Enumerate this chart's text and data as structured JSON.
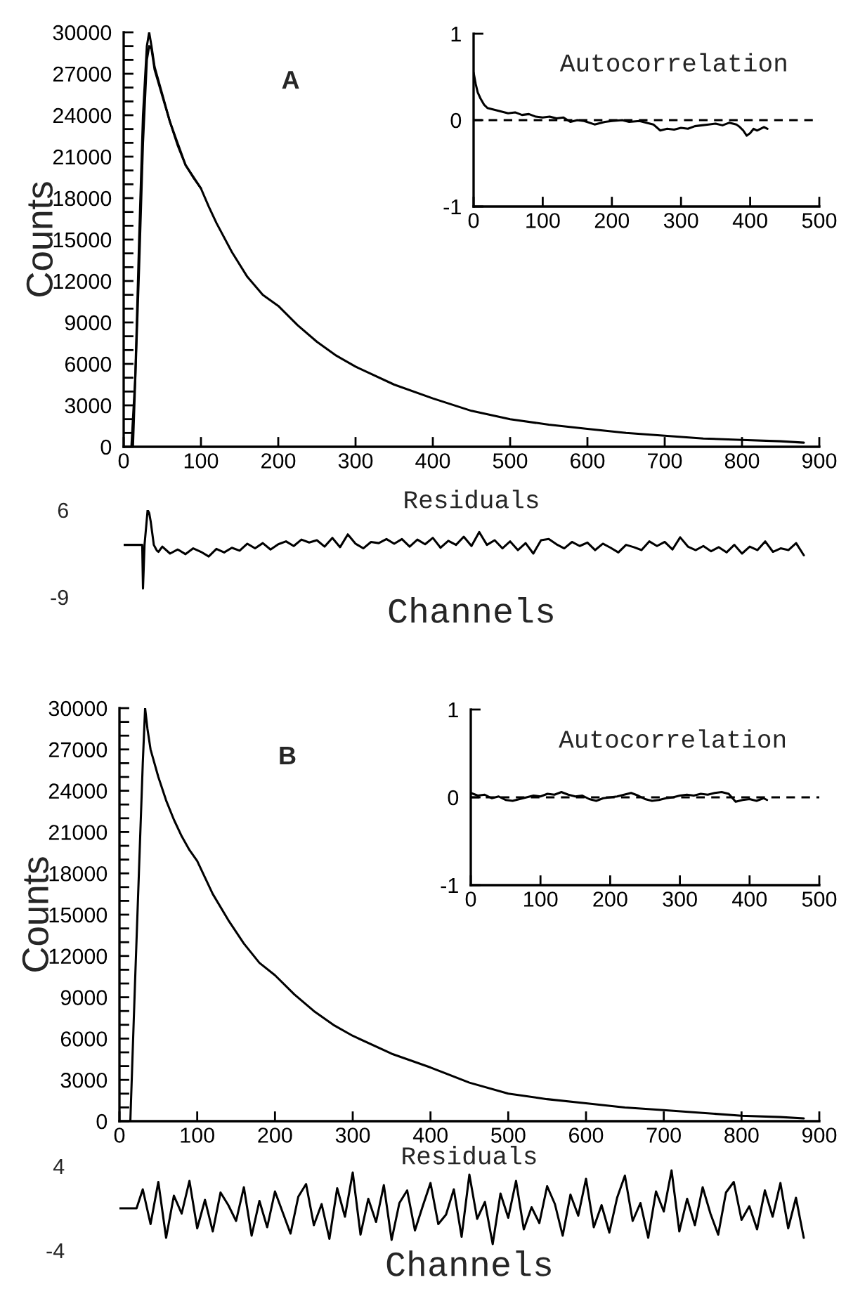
{
  "chart_data": [
    {
      "type": "line",
      "ylabel": "Counts",
      "annotations": [
        "A"
      ],
      "xlim": [
        0,
        900
      ],
      "ylim": [
        0,
        30000
      ],
      "xticks": [
        0,
        100,
        200,
        300,
        400,
        500,
        600,
        700,
        800,
        900
      ],
      "yticks": [
        0,
        {
          "value": 1000,
          "label": null
        },
        {
          "value": 2000,
          "label": null
        },
        3000,
        {
          "value": 4000,
          "label": null
        },
        {
          "value": 5000,
          "label": null
        },
        6000,
        {
          "value": 7000,
          "label": null
        },
        {
          "value": 8000,
          "label": null
        },
        9000,
        {
          "value": 10000,
          "label": null
        },
        {
          "value": 11000,
          "label": null
        },
        12000,
        {
          "value": 13000,
          "label": null
        },
        {
          "value": 14000,
          "label": null
        },
        15000,
        {
          "value": 16000,
          "label": null
        },
        {
          "value": 17000,
          "label": null
        },
        18000,
        {
          "value": 19000,
          "label": null
        },
        {
          "value": 20000,
          "label": null
        },
        21000,
        {
          "value": 22000,
          "label": null
        },
        {
          "value": 23000,
          "label": null
        },
        24000,
        {
          "value": 25000,
          "label": null
        },
        {
          "value": 26000,
          "label": null
        },
        27000,
        {
          "value": 28000,
          "label": null
        },
        {
          "value": 29000,
          "label": null
        },
        30000
      ],
      "series": [
        {
          "color": "#000000",
          "x": [
            10,
            15,
            20,
            25,
            30,
            33,
            36,
            40,
            50,
            60,
            70,
            80,
            90,
            100,
            110,
            120,
            140,
            160,
            180,
            200,
            225,
            250,
            275,
            300,
            350,
            400,
            450,
            500,
            550,
            600,
            650,
            700,
            750,
            800,
            850,
            880
          ],
          "values": [
            0,
            5000,
            15000,
            24000,
            29000,
            30000,
            29000,
            27500,
            25500,
            23500,
            21800,
            20400,
            19500,
            18700,
            17400,
            16200,
            14100,
            12300,
            11000,
            10200,
            8800,
            7600,
            6600,
            5800,
            4500,
            3500,
            2600,
            2000,
            1600,
            1300,
            1000,
            800,
            600,
            500,
            400,
            300
          ]
        },
        {
          "color": "#000000",
          "x": [
            12,
            20,
            25,
            30,
            33,
            36,
            40,
            50,
            60,
            80,
            100
          ],
          "values": [
            0,
            13000,
            22000,
            28000,
            29000,
            28800,
            27300,
            25400,
            23500,
            20400,
            18700
          ]
        }
      ]
    },
    {
      "type": "line",
      "title": "Autocorrelation",
      "xlim": [
        0,
        500
      ],
      "ylim": [
        -1,
        1
      ],
      "xticks": [
        0,
        100,
        200,
        300,
        400,
        500
      ],
      "yticks": [
        -1,
        0,
        1
      ],
      "ref_lines": [
        {
          "axis": "y",
          "value": 0,
          "color": "#000000",
          "line_style": "dashed"
        }
      ],
      "series": [
        {
          "color": "#000000",
          "x": [
            0,
            3,
            6,
            10,
            15,
            20,
            30,
            40,
            50,
            60,
            70,
            80,
            90,
            100,
            110,
            120,
            130,
            140,
            150,
            160,
            175,
            190,
            200,
            215,
            225,
            240,
            250,
            260,
            270,
            280,
            290,
            300,
            310,
            320,
            330,
            340,
            350,
            360,
            370,
            380,
            385,
            390,
            395,
            400,
            405,
            410,
            420,
            425
          ],
          "values": [
            0.55,
            0.42,
            0.32,
            0.25,
            0.18,
            0.14,
            0.12,
            0.1,
            0.08,
            0.09,
            0.06,
            0.07,
            0.04,
            0.03,
            0.04,
            0.02,
            0.03,
            -0.02,
            0.0,
            -0.01,
            -0.05,
            -0.02,
            -0.01,
            0.0,
            -0.02,
            -0.01,
            -0.03,
            -0.05,
            -0.12,
            -0.1,
            -0.11,
            -0.09,
            -0.1,
            -0.07,
            -0.06,
            -0.05,
            -0.04,
            -0.06,
            -0.03,
            -0.05,
            -0.08,
            -0.12,
            -0.18,
            -0.15,
            -0.1,
            -0.12,
            -0.08,
            -0.1
          ]
        }
      ]
    },
    {
      "type": "line",
      "title": "Residuals",
      "xlabel": "Channels",
      "xlim": [
        0,
        900
      ],
      "ylim": [
        -9,
        6
      ],
      "yticks": [
        6,
        -9
      ],
      "tick_labels": "y",
      "series": [
        {
          "color": "#000000",
          "x": [
            0,
            24,
            25,
            27,
            29,
            31,
            33,
            35,
            37,
            39,
            41,
            43,
            45,
            50,
            60,
            70,
            80,
            90,
            100,
            110,
            120,
            130,
            140,
            150,
            160,
            170,
            180,
            190,
            200,
            210,
            220,
            230,
            240,
            250,
            260,
            270,
            280,
            290,
            300,
            310,
            320,
            330,
            340,
            350,
            360,
            370,
            380,
            390,
            400,
            410,
            420,
            430,
            440,
            450,
            460,
            470,
            480,
            490,
            500,
            510,
            520,
            530,
            540,
            550,
            560,
            570,
            580,
            590,
            600,
            610,
            620,
            630,
            640,
            650,
            660,
            670,
            680,
            690,
            700,
            710,
            720,
            730,
            740,
            750,
            760,
            770,
            780,
            790,
            800,
            810,
            820,
            830,
            840,
            850,
            860,
            870,
            880
          ],
          "values": [
            0,
            0,
            -7.5,
            0,
            3,
            6,
            5.5,
            4,
            2,
            0,
            -0.5,
            -1,
            -1.2,
            -0.3,
            -1.5,
            -0.8,
            -1.6,
            -0.6,
            -1.2,
            -2.0,
            -0.7,
            -1.3,
            -0.5,
            -1.0,
            0.2,
            -0.6,
            0.3,
            -0.8,
            0.1,
            0.6,
            -0.2,
            0.9,
            0.4,
            0.8,
            -0.3,
            1.2,
            -0.4,
            1.8,
            0.2,
            -0.6,
            0.5,
            0.3,
            1.0,
            0.2,
            1.0,
            -0.3,
            0.9,
            0.1,
            1.2,
            -0.5,
            0.7,
            0.0,
            1.4,
            -0.2,
            2.2,
            0.0,
            0.8,
            -0.6,
            0.6,
            -0.9,
            0.3,
            -1.5,
            0.8,
            1.0,
            0.1,
            -0.6,
            0.5,
            -0.2,
            0.4,
            -0.9,
            0.2,
            -0.5,
            -1.3,
            0.0,
            -0.4,
            -0.9,
            0.6,
            -0.2,
            0.5,
            -0.8,
            1.3,
            -0.3,
            -0.9,
            -0.2,
            -1.1,
            -0.4,
            -1.3,
            0.0,
            -1.5,
            -0.3,
            -0.9,
            0.6,
            -1.2,
            -0.6,
            -0.9,
            0.3,
            -1.8
          ]
        }
      ]
    },
    {
      "type": "line",
      "ylabel": "Counts",
      "annotations": [
        "B"
      ],
      "xlim": [
        0,
        900
      ],
      "ylim": [
        0,
        30000
      ],
      "xticks": [
        0,
        100,
        200,
        300,
        400,
        500,
        600,
        700,
        800,
        900
      ],
      "yticks": [
        0,
        {
          "value": 1000,
          "label": null
        },
        {
          "value": 2000,
          "label": null
        },
        3000,
        {
          "value": 4000,
          "label": null
        },
        {
          "value": 5000,
          "label": null
        },
        6000,
        {
          "value": 7000,
          "label": null
        },
        {
          "value": 8000,
          "label": null
        },
        9000,
        {
          "value": 10000,
          "label": null
        },
        {
          "value": 11000,
          "label": null
        },
        12000,
        {
          "value": 13000,
          "label": null
        },
        {
          "value": 14000,
          "label": null
        },
        15000,
        {
          "value": 16000,
          "label": null
        },
        {
          "value": 17000,
          "label": null
        },
        18000,
        {
          "value": 19000,
          "label": null
        },
        {
          "value": 20000,
          "label": null
        },
        21000,
        {
          "value": 22000,
          "label": null
        },
        {
          "value": 23000,
          "label": null
        },
        24000,
        {
          "value": 25000,
          "label": null
        },
        {
          "value": 26000,
          "label": null
        },
        27000,
        {
          "value": 28000,
          "label": null
        },
        {
          "value": 29000,
          "label": null
        },
        30000
      ],
      "series": [
        {
          "color": "#000000",
          "x": [
            14,
            20,
            25,
            30,
            33,
            36,
            40,
            50,
            60,
            70,
            80,
            90,
            100,
            120,
            140,
            160,
            180,
            200,
            225,
            250,
            275,
            300,
            350,
            400,
            450,
            500,
            550,
            600,
            650,
            700,
            750,
            800,
            850,
            880
          ],
          "values": [
            0,
            10000,
            18000,
            26000,
            30000,
            28500,
            27000,
            25000,
            23300,
            21900,
            20700,
            19700,
            18900,
            16500,
            14600,
            12900,
            11500,
            10600,
            9200,
            8000,
            7000,
            6200,
            4900,
            3900,
            2800,
            2000,
            1600,
            1300,
            1000,
            800,
            600,
            400,
            300,
            200
          ]
        }
      ]
    },
    {
      "type": "line",
      "title": "Autocorrelation",
      "xlim": [
        0,
        500
      ],
      "ylim": [
        -1,
        1
      ],
      "xticks": [
        0,
        100,
        200,
        300,
        400,
        500
      ],
      "yticks": [
        -1,
        0,
        1
      ],
      "ref_lines": [
        {
          "axis": "y",
          "value": 0,
          "color": "#000000",
          "line_style": "dashed"
        }
      ],
      "series": [
        {
          "color": "#000000",
          "x": [
            0,
            10,
            20,
            30,
            40,
            50,
            60,
            70,
            80,
            90,
            100,
            110,
            120,
            130,
            140,
            150,
            160,
            170,
            180,
            190,
            200,
            210,
            220,
            230,
            240,
            250,
            260,
            270,
            280,
            290,
            300,
            310,
            320,
            330,
            340,
            350,
            360,
            370,
            380,
            390,
            400,
            410,
            420,
            425
          ],
          "values": [
            0.05,
            0.02,
            0.03,
            -0.01,
            0.01,
            -0.03,
            -0.04,
            -0.02,
            0.0,
            0.02,
            0.01,
            0.04,
            0.03,
            0.06,
            0.03,
            0.01,
            0.02,
            -0.02,
            -0.04,
            -0.01,
            0.0,
            0.01,
            0.03,
            0.05,
            0.02,
            -0.02,
            -0.04,
            -0.03,
            -0.01,
            0.0,
            0.02,
            0.03,
            0.02,
            0.04,
            0.03,
            0.05,
            0.06,
            0.04,
            -0.05,
            -0.03,
            -0.02,
            -0.04,
            -0.01,
            -0.03
          ]
        }
      ]
    },
    {
      "type": "line",
      "title": "Residuals",
      "xlabel": "Channels",
      "xlim": [
        0,
        900
      ],
      "ylim": [
        -4,
        4
      ],
      "yticks": [
        4,
        -4
      ],
      "tick_labels": "y",
      "series": [
        {
          "color": "#000000",
          "x": [
            0,
            22,
            30,
            40,
            50,
            60,
            70,
            80,
            90,
            100,
            110,
            120,
            130,
            140,
            150,
            160,
            170,
            180,
            190,
            200,
            210,
            220,
            230,
            240,
            250,
            260,
            270,
            280,
            290,
            300,
            310,
            320,
            330,
            340,
            350,
            360,
            370,
            380,
            390,
            400,
            410,
            420,
            430,
            440,
            450,
            460,
            470,
            480,
            490,
            500,
            510,
            520,
            530,
            540,
            550,
            560,
            570,
            580,
            590,
            600,
            610,
            620,
            630,
            640,
            650,
            660,
            670,
            680,
            690,
            700,
            710,
            720,
            730,
            740,
            750,
            760,
            770,
            780,
            790,
            800,
            810,
            820,
            830,
            840,
            850,
            860,
            870,
            880
          ],
          "values": [
            0,
            0,
            1.8,
            -1.5,
            2.5,
            -2.8,
            1.2,
            -0.5,
            2.6,
            -1.9,
            0.8,
            -2.2,
            1.5,
            0.3,
            -1.2,
            2.0,
            -2.6,
            0.7,
            -1.8,
            1.6,
            -0.4,
            -2.4,
            1.1,
            2.3,
            -1.6,
            0.4,
            -2.9,
            1.9,
            -0.8,
            3.4,
            -2.5,
            0.9,
            -1.3,
            2.2,
            -3.0,
            0.5,
            1.7,
            -2.1,
            0.2,
            2.4,
            -1.5,
            -0.6,
            1.8,
            -2.7,
            3.2,
            -1.0,
            0.6,
            -3.4,
            1.4,
            -0.9,
            2.6,
            -2.0,
            0.1,
            -1.4,
            2.1,
            0.4,
            -2.6,
            1.3,
            -0.7,
            2.8,
            -1.8,
            0.3,
            -2.3,
            1.0,
            3.1,
            -1.2,
            0.5,
            -2.8,
            1.6,
            -0.3,
            3.6,
            -2.2,
            0.9,
            -1.6,
            2.0,
            -0.5,
            -2.5,
            1.5,
            2.5,
            -1.1,
            0.2,
            -2.0,
            1.7,
            -0.8,
            2.4,
            -1.9,
            1.0,
            -2.8
          ]
        }
      ]
    }
  ]
}
